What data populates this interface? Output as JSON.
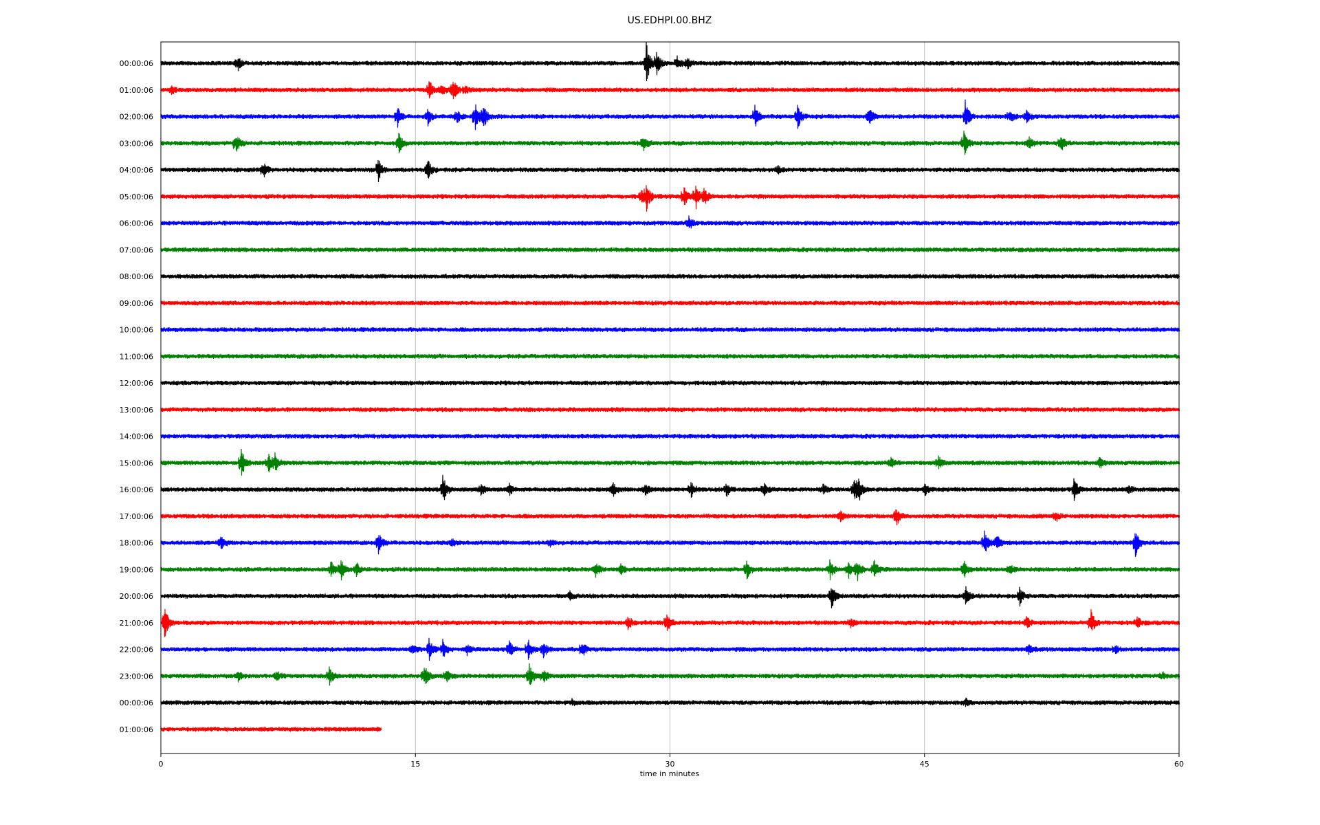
{
  "chart_data": {
    "type": "line",
    "title": "US.EDHPI.00.BHZ",
    "xlabel": "time in minutes",
    "xlim": [
      0,
      60
    ],
    "x_ticks": [
      "0",
      "15",
      "30",
      "45",
      "60"
    ],
    "x_tick_values": [
      0,
      15,
      30,
      45,
      60
    ],
    "grid": "vertical",
    "trace_colors": [
      "#000000",
      "#ff0000",
      "#0000ff",
      "#008000"
    ],
    "rows": [
      {
        "label": "00:00:06",
        "color": "#000000",
        "end": 60,
        "events": [
          [
            4.5,
            0.6
          ],
          [
            28.6,
            1.6
          ],
          [
            29.2,
            0.9
          ],
          [
            30.4,
            0.6
          ],
          [
            31.0,
            0.4
          ]
        ]
      },
      {
        "label": "01:00:06",
        "color": "#ff0000",
        "end": 60,
        "events": [
          [
            0.6,
            0.3
          ],
          [
            15.8,
            0.8
          ],
          [
            16.5,
            0.6
          ],
          [
            17.2,
            0.9
          ],
          [
            17.9,
            0.3
          ]
        ]
      },
      {
        "label": "02:00:06",
        "color": "#0000ff",
        "end": 60,
        "events": [
          [
            13.9,
            0.9
          ],
          [
            15.7,
            0.7
          ],
          [
            17.4,
            0.7
          ],
          [
            18.5,
            1.2
          ],
          [
            19.0,
            0.9
          ],
          [
            35.0,
            1.0
          ],
          [
            37.5,
            1.1
          ],
          [
            41.7,
            0.8
          ],
          [
            47.4,
            1.2
          ],
          [
            50.0,
            0.5
          ],
          [
            51.0,
            0.5
          ]
        ]
      },
      {
        "label": "03:00:06",
        "color": "#008000",
        "end": 60,
        "events": [
          [
            4.4,
            0.9
          ],
          [
            14.0,
            0.8
          ],
          [
            28.4,
            0.7
          ],
          [
            47.3,
            1.1
          ],
          [
            51.1,
            0.6
          ],
          [
            53.0,
            0.9
          ]
        ]
      },
      {
        "label": "04:00:06",
        "color": "#000000",
        "end": 60,
        "events": [
          [
            6.0,
            0.7
          ],
          [
            12.8,
            0.9
          ],
          [
            15.7,
            1.0
          ],
          [
            36.3,
            0.4
          ]
        ]
      },
      {
        "label": "05:00:06",
        "color": "#ff0000",
        "end": 60,
        "events": [
          [
            28.3,
            0.6
          ],
          [
            28.6,
            1.0
          ],
          [
            30.8,
            0.9
          ],
          [
            31.5,
            1.1
          ],
          [
            32.0,
            0.7
          ]
        ]
      },
      {
        "label": "06:00:06",
        "color": "#0000ff",
        "end": 60,
        "events": [
          [
            31.1,
            0.5
          ]
        ]
      },
      {
        "label": "07:00:06",
        "color": "#008000",
        "end": 60,
        "events": []
      },
      {
        "label": "08:00:06",
        "color": "#000000",
        "end": 60,
        "events": []
      },
      {
        "label": "09:00:06",
        "color": "#ff0000",
        "end": 60,
        "events": []
      },
      {
        "label": "10:00:06",
        "color": "#0000ff",
        "end": 60,
        "events": []
      },
      {
        "label": "11:00:06",
        "color": "#008000",
        "end": 60,
        "events": []
      },
      {
        "label": "12:00:06",
        "color": "#000000",
        "end": 60,
        "events": []
      },
      {
        "label": "13:00:06",
        "color": "#ff0000",
        "end": 60,
        "events": []
      },
      {
        "label": "14:00:06",
        "color": "#0000ff",
        "end": 60,
        "events": []
      },
      {
        "label": "15:00:06",
        "color": "#008000",
        "end": 60,
        "events": [
          [
            4.7,
            1.3
          ],
          [
            6.3,
            0.8
          ],
          [
            6.7,
            0.7
          ],
          [
            43.0,
            0.4
          ],
          [
            45.8,
            0.5
          ],
          [
            55.3,
            0.4
          ]
        ]
      },
      {
        "label": "16:00:06",
        "color": "#000000",
        "end": 60,
        "events": [
          [
            16.6,
            1.2
          ],
          [
            18.8,
            0.5
          ],
          [
            20.5,
            0.5
          ],
          [
            26.6,
            0.6
          ],
          [
            28.5,
            0.5
          ],
          [
            31.2,
            0.7
          ],
          [
            33.3,
            0.5
          ],
          [
            35.5,
            0.6
          ],
          [
            39.0,
            0.4
          ],
          [
            40.8,
            1.0
          ],
          [
            41.1,
            0.9
          ],
          [
            45.0,
            0.5
          ],
          [
            53.8,
            0.9
          ],
          [
            57.0,
            0.3
          ]
        ]
      },
      {
        "label": "17:00:06",
        "color": "#ff0000",
        "end": 60,
        "events": [
          [
            40.0,
            0.5
          ],
          [
            43.3,
            0.8
          ],
          [
            52.7,
            0.4
          ]
        ]
      },
      {
        "label": "18:00:06",
        "color": "#0000ff",
        "end": 60,
        "events": [
          [
            3.5,
            0.6
          ],
          [
            12.8,
            0.8
          ],
          [
            17.1,
            0.3
          ],
          [
            22.9,
            0.3
          ],
          [
            48.5,
            1.0
          ],
          [
            49.2,
            0.8
          ],
          [
            57.4,
            1.2
          ]
        ]
      },
      {
        "label": "19:00:06",
        "color": "#008000",
        "end": 60,
        "events": [
          [
            10.0,
            0.7
          ],
          [
            10.6,
            0.8
          ],
          [
            11.5,
            0.6
          ],
          [
            25.6,
            0.6
          ],
          [
            27.1,
            0.5
          ],
          [
            34.5,
            0.8
          ],
          [
            39.4,
            0.8
          ],
          [
            40.5,
            0.7
          ],
          [
            41.0,
            0.9
          ],
          [
            42.0,
            0.8
          ],
          [
            47.3,
            0.7
          ],
          [
            50.0,
            0.4
          ]
        ]
      },
      {
        "label": "20:00:06",
        "color": "#000000",
        "end": 60,
        "events": [
          [
            24.1,
            0.4
          ],
          [
            39.5,
            1.0
          ],
          [
            47.4,
            0.8
          ],
          [
            50.6,
            0.7
          ]
        ]
      },
      {
        "label": "21:00:06",
        "color": "#ff0000",
        "end": 60,
        "events": [
          [
            0.2,
            1.4
          ],
          [
            27.5,
            0.6
          ],
          [
            29.8,
            0.8
          ],
          [
            40.6,
            0.4
          ],
          [
            51.0,
            0.5
          ],
          [
            54.8,
            1.0
          ],
          [
            57.5,
            0.5
          ]
        ]
      },
      {
        "label": "22:00:06",
        "color": "#0000ff",
        "end": 60,
        "events": [
          [
            14.8,
            0.4
          ],
          [
            15.8,
            0.9
          ],
          [
            16.6,
            0.7
          ],
          [
            18.0,
            0.4
          ],
          [
            20.5,
            0.7
          ],
          [
            21.6,
            0.9
          ],
          [
            22.5,
            0.7
          ],
          [
            24.8,
            0.7
          ],
          [
            51.1,
            0.4
          ],
          [
            56.2,
            0.3
          ]
        ]
      },
      {
        "label": "23:00:06",
        "color": "#008000",
        "end": 60,
        "events": [
          [
            4.5,
            0.5
          ],
          [
            6.8,
            0.4
          ],
          [
            9.9,
            0.8
          ],
          [
            15.5,
            1.0
          ],
          [
            16.8,
            0.5
          ],
          [
            21.7,
            1.0
          ],
          [
            22.5,
            0.6
          ],
          [
            59.0,
            0.3
          ]
        ]
      },
      {
        "label": "00:00:06",
        "color": "#000000",
        "end": 60,
        "events": [
          [
            24.2,
            0.3
          ],
          [
            47.4,
            0.3
          ]
        ]
      },
      {
        "label": "01:00:06",
        "color": "#ff0000",
        "end": 13.0,
        "events": []
      }
    ]
  }
}
